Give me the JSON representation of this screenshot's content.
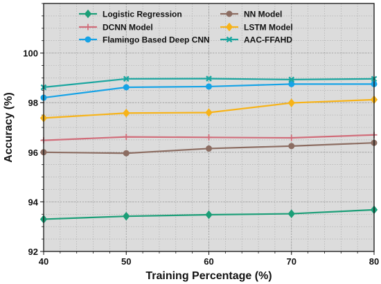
{
  "chart_data": {
    "type": "line",
    "xlabel": "Training Percentage (%)",
    "ylabel": "Accuracy (%)",
    "x": [
      40,
      50,
      60,
      70,
      80
    ],
    "xlim": [
      40,
      80
    ],
    "ylim": [
      92,
      102
    ],
    "xticks": [
      40,
      50,
      60,
      70,
      80
    ],
    "yticks": [
      92,
      94,
      96,
      98,
      100
    ],
    "grid": true,
    "background": "#dcdcdc",
    "legend_position": "top",
    "series": [
      {
        "name": "Logistic Regression",
        "values": [
          93.3,
          93.42,
          93.48,
          93.52,
          93.68
        ],
        "color": "#1b9e77",
        "marker": "diamond"
      },
      {
        "name": "NN Model",
        "values": [
          96.0,
          95.96,
          96.15,
          96.25,
          96.38
        ],
        "color": "#8c6d62",
        "marker": "circle"
      },
      {
        "name": "DCNN Model",
        "values": [
          96.48,
          96.62,
          96.6,
          96.58,
          96.7
        ],
        "color": "#d16d7a",
        "marker": "plus"
      },
      {
        "name": "LSTM Model",
        "values": [
          97.38,
          97.58,
          97.6,
          97.99,
          98.12
        ],
        "color": "#f7b319",
        "marker": "diamond"
      },
      {
        "name": "Flamingo Based Deep CNN",
        "values": [
          98.2,
          98.62,
          98.65,
          98.75,
          98.75
        ],
        "color": "#16a3e6",
        "marker": "circle"
      },
      {
        "name": "AAC-FFAHD",
        "values": [
          98.62,
          98.96,
          98.97,
          98.93,
          98.96
        ],
        "color": "#1aa6a0",
        "marker": "x"
      }
    ]
  }
}
